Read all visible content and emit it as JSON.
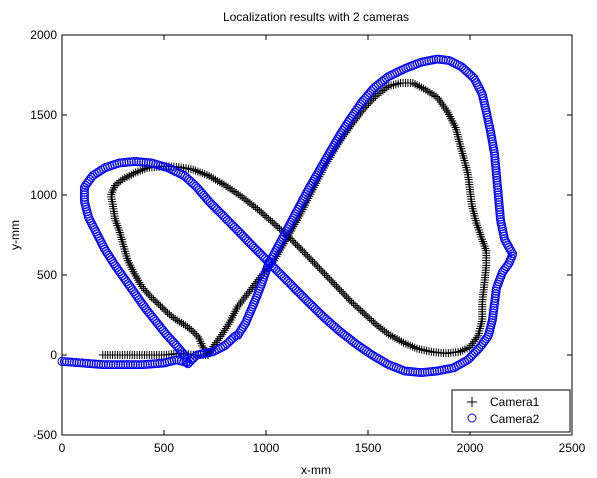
{
  "chart_data": {
    "type": "scatter",
    "title": "Localization results with 2 cameras",
    "xlabel": "x-mm",
    "ylabel": "y-mm",
    "xlim": [
      0,
      2500
    ],
    "ylim": [
      -500,
      2000
    ],
    "xticks": [
      0,
      500,
      1000,
      1500,
      2000,
      2500
    ],
    "yticks": [
      -500,
      0,
      500,
      1000,
      1500,
      2000
    ],
    "grid": false,
    "legend_position": "bottom-right",
    "series": [
      {
        "name": "Camera1",
        "marker": "plus",
        "color": "#000000",
        "path": [
          [
            200,
            0
          ],
          [
            300,
            0
          ],
          [
            400,
            0
          ],
          [
            500,
            0
          ],
          [
            580,
            10
          ],
          [
            650,
            0
          ],
          [
            720,
            0
          ],
          [
            690,
            50
          ],
          [
            670,
            110
          ],
          [
            640,
            150
          ],
          [
            600,
            190
          ],
          [
            560,
            220
          ],
          [
            520,
            260
          ],
          [
            480,
            310
          ],
          [
            430,
            370
          ],
          [
            390,
            430
          ],
          [
            350,
            520
          ],
          [
            320,
            600
          ],
          [
            300,
            690
          ],
          [
            280,
            780
          ],
          [
            260,
            850
          ],
          [
            250,
            930
          ],
          [
            240,
            1000
          ],
          [
            260,
            1060
          ],
          [
            300,
            1100
          ],
          [
            360,
            1140
          ],
          [
            420,
            1170
          ],
          [
            500,
            1180
          ],
          [
            570,
            1175
          ],
          [
            640,
            1160
          ],
          [
            720,
            1120
          ],
          [
            800,
            1060
          ],
          [
            880,
            990
          ],
          [
            960,
            910
          ],
          [
            1040,
            820
          ],
          [
            1110,
            740
          ],
          [
            1180,
            650
          ],
          [
            1240,
            570
          ],
          [
            1300,
            490
          ],
          [
            1360,
            410
          ],
          [
            1420,
            330
          ],
          [
            1480,
            260
          ],
          [
            1540,
            190
          ],
          [
            1600,
            130
          ],
          [
            1670,
            80
          ],
          [
            1740,
            40
          ],
          [
            1810,
            20
          ],
          [
            1880,
            10
          ],
          [
            1950,
            20
          ],
          [
            2000,
            50
          ],
          [
            2040,
            120
          ],
          [
            2060,
            220
          ],
          [
            2060,
            330
          ],
          [
            2070,
            440
          ],
          [
            2080,
            560
          ],
          [
            2080,
            650
          ],
          [
            2060,
            720
          ],
          [
            2030,
            830
          ],
          [
            2010,
            930
          ],
          [
            2000,
            1030
          ],
          [
            1990,
            1130
          ],
          [
            1970,
            1230
          ],
          [
            1950,
            1320
          ],
          [
            1930,
            1420
          ],
          [
            1890,
            1520
          ],
          [
            1840,
            1610
          ],
          [
            1780,
            1660
          ],
          [
            1720,
            1700
          ],
          [
            1660,
            1700
          ],
          [
            1600,
            1680
          ],
          [
            1540,
            1620
          ],
          [
            1480,
            1540
          ],
          [
            1420,
            1440
          ],
          [
            1370,
            1350
          ],
          [
            1320,
            1250
          ],
          [
            1280,
            1160
          ],
          [
            1240,
            1060
          ],
          [
            1200,
            960
          ],
          [
            1160,
            860
          ],
          [
            1120,
            770
          ],
          [
            1080,
            680
          ],
          [
            1040,
            590
          ],
          [
            980,
            500
          ],
          [
            920,
            400
          ],
          [
            860,
            300
          ],
          [
            820,
            200
          ],
          [
            780,
            120
          ],
          [
            740,
            50
          ],
          [
            720,
            0
          ]
        ],
        "step": 12
      },
      {
        "name": "Camera2",
        "marker": "circle",
        "color": "#0000ff",
        "path": [
          [
            0,
            -40
          ],
          [
            100,
            -50
          ],
          [
            200,
            -60
          ],
          [
            300,
            -60
          ],
          [
            400,
            -60
          ],
          [
            500,
            -50
          ],
          [
            560,
            -30
          ],
          [
            620,
            -50
          ],
          [
            660,
            0
          ],
          [
            700,
            10
          ],
          [
            740,
            20
          ],
          [
            800,
            60
          ],
          [
            850,
            120
          ],
          [
            860,
            120
          ],
          [
            900,
            200
          ],
          [
            920,
            260
          ],
          [
            950,
            350
          ],
          [
            980,
            450
          ],
          [
            1010,
            560
          ],
          [
            1060,
            680
          ],
          [
            1110,
            800
          ],
          [
            1160,
            920
          ],
          [
            1210,
            1040
          ],
          [
            1260,
            1150
          ],
          [
            1310,
            1260
          ],
          [
            1360,
            1370
          ],
          [
            1410,
            1470
          ],
          [
            1470,
            1580
          ],
          [
            1530,
            1670
          ],
          [
            1600,
            1740
          ],
          [
            1680,
            1790
          ],
          [
            1760,
            1830
          ],
          [
            1840,
            1850
          ],
          [
            1900,
            1840
          ],
          [
            1960,
            1800
          ],
          [
            2020,
            1730
          ],
          [
            2060,
            1630
          ],
          [
            2080,
            1520
          ],
          [
            2100,
            1400
          ],
          [
            2120,
            1260
          ],
          [
            2130,
            1120
          ],
          [
            2140,
            980
          ],
          [
            2150,
            840
          ],
          [
            2170,
            720
          ],
          [
            2210,
            630
          ],
          [
            2190,
            570
          ],
          [
            2160,
            520
          ],
          [
            2130,
            420
          ],
          [
            2120,
            320
          ],
          [
            2110,
            220
          ],
          [
            2090,
            120
          ],
          [
            2050,
            50
          ],
          [
            1990,
            -30
          ],
          [
            1920,
            -80
          ],
          [
            1840,
            -100
          ],
          [
            1760,
            -110
          ],
          [
            1680,
            -100
          ],
          [
            1600,
            -60
          ],
          [
            1520,
            0
          ],
          [
            1440,
            70
          ],
          [
            1360,
            150
          ],
          [
            1280,
            240
          ],
          [
            1200,
            340
          ],
          [
            1130,
            430
          ],
          [
            1060,
            520
          ],
          [
            990,
            610
          ],
          [
            920,
            700
          ],
          [
            860,
            780
          ],
          [
            790,
            870
          ],
          [
            720,
            960
          ],
          [
            660,
            1050
          ],
          [
            600,
            1120
          ],
          [
            520,
            1170
          ],
          [
            440,
            1200
          ],
          [
            360,
            1210
          ],
          [
            280,
            1200
          ],
          [
            210,
            1170
          ],
          [
            150,
            1120
          ],
          [
            110,
            1050
          ],
          [
            110,
            960
          ],
          [
            130,
            860
          ],
          [
            170,
            760
          ],
          [
            210,
            660
          ],
          [
            260,
            560
          ],
          [
            310,
            470
          ],
          [
            360,
            380
          ],
          [
            410,
            290
          ],
          [
            460,
            210
          ],
          [
            510,
            130
          ],
          [
            560,
            60
          ],
          [
            600,
            0
          ],
          [
            610,
            -40
          ],
          [
            620,
            -60
          ]
        ],
        "step": 12
      }
    ]
  }
}
